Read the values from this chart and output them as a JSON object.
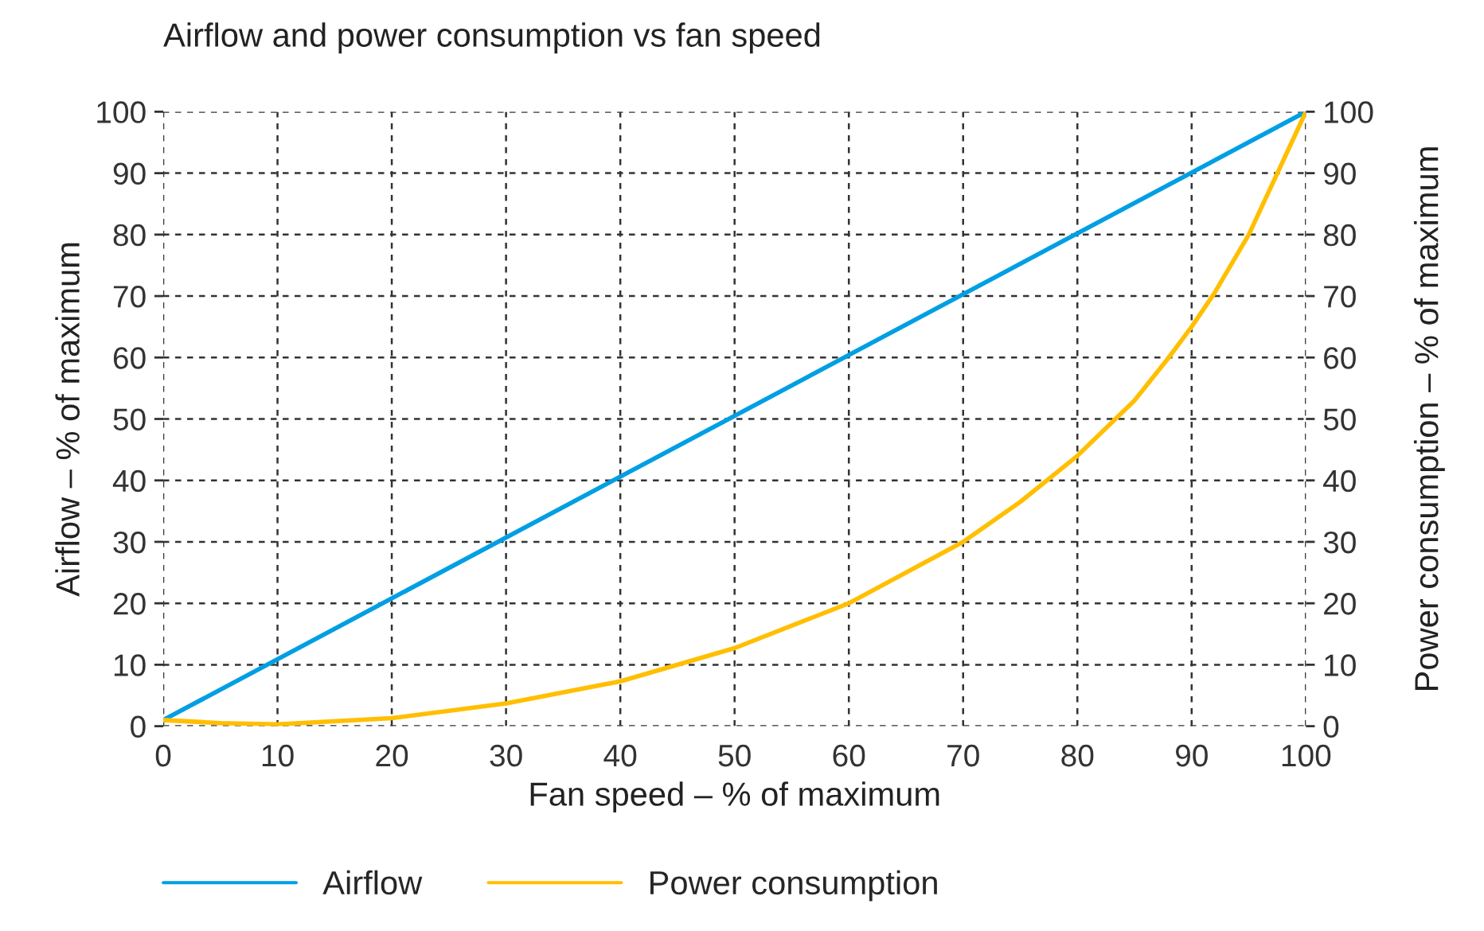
{
  "chart_data": {
    "type": "line",
    "title": "Airflow and power consumption vs fan speed",
    "xlabel": "Fan speed – % of maximum",
    "ylabel": "Airflow – % of maximum",
    "y2label": "Power consumption – % of maximum",
    "xlim": [
      0,
      100
    ],
    "xticks": [
      0,
      10,
      20,
      30,
      40,
      50,
      60,
      70,
      80,
      90,
      100
    ],
    "ylim": [
      0,
      100
    ],
    "yticks": [
      0,
      10,
      20,
      30,
      40,
      50,
      60,
      70,
      80,
      90,
      100
    ],
    "y2lim": [
      0,
      100
    ],
    "y2ticks": [
      0,
      10,
      20,
      30,
      40,
      50,
      60,
      70,
      80,
      90,
      100
    ],
    "grid": true,
    "legend": "bottom",
    "line_style": "solid",
    "series": [
      {
        "name": "Airflow",
        "color": "#009fe3",
        "x": [
          0,
          100
        ],
        "values": [
          1,
          100
        ]
      },
      {
        "name": "Power consumption",
        "color": "#ffbf00",
        "axis": "y2",
        "x": [
          0,
          5,
          10,
          20,
          30,
          40,
          50,
          60,
          70,
          75,
          80,
          85,
          88,
          90,
          92,
          95,
          97,
          99,
          100
        ],
        "values": [
          1,
          0.5,
          0.3,
          1.3,
          3.7,
          7.3,
          12.7,
          20,
          30,
          36.5,
          44,
          53,
          60,
          65,
          70.5,
          80,
          88,
          96,
          100
        ]
      }
    ]
  }
}
